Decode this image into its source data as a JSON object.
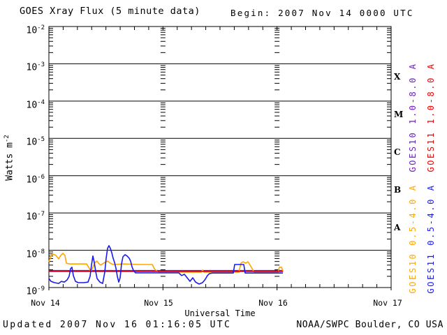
{
  "header": {
    "title": "GOES Xray Flux (5 minute data)",
    "begin": "Begin:  2007 Nov 14 0000 UTC"
  },
  "footer": {
    "updated": "Updated 2007 Nov 16 01:16:05 UTC",
    "source": "NOAA/SWPC Boulder, CO USA"
  },
  "colors": {
    "goes10_long": "#6a1fbf",
    "goes11_long": "#ee0000",
    "goes10_short": "#ffa500",
    "goes11_short": "#1a1aee",
    "axis": "#000000",
    "background": "#ffffff"
  },
  "chart_data": {
    "type": "line",
    "title": "GOES Xray Flux (5 minute data)",
    "xlabel": "Universal Time",
    "ylabel_base": "Watts m",
    "ylabel_exp": "-2",
    "x_unit": "hours since 2007 Nov 14 0000 UTC",
    "xlim_hours": [
      0,
      72
    ],
    "ylog_range": [
      -9,
      -2
    ],
    "grid": "horizontal decade lines, log minor ticks on axes and at day boundaries",
    "minor_tick_interval_hours": 3,
    "x_ticks": [
      {
        "hour": 0,
        "label": "Nov 14"
      },
      {
        "hour": 24,
        "label": "Nov 15"
      },
      {
        "hour": 48,
        "label": "Nov 16"
      },
      {
        "hour": 72,
        "label": "Nov 17"
      }
    ],
    "y_ticks": [
      {
        "base": "10",
        "exp": "-2"
      },
      {
        "base": "10",
        "exp": "-3"
      },
      {
        "base": "10",
        "exp": "-4"
      },
      {
        "base": "10",
        "exp": "-5"
      },
      {
        "base": "10",
        "exp": "-6"
      },
      {
        "base": "10",
        "exp": "-7"
      },
      {
        "base": "10",
        "exp": "-8"
      },
      {
        "base": "10",
        "exp": "-9"
      }
    ],
    "class_bands": [
      "X",
      "M",
      "C",
      "B",
      "A"
    ],
    "legend": [
      {
        "label": "GOES10 1.0-8.0 A",
        "color": "#6a1fbf"
      },
      {
        "label": "GOES11 1.0-8.0 A",
        "color": "#ee0000"
      },
      {
        "label": "GOES10 0.5-4.0 A",
        "color": "#ffa500"
      },
      {
        "label": "GOES11 0.5-4.0 A",
        "color": "#1a1aee"
      }
    ],
    "series": [
      {
        "name": "GOES10 1.0-8.0 A",
        "color": "#6a1fbf",
        "points": [
          [
            0,
            2.85e-09
          ],
          [
            49.25,
            2.85e-09
          ]
        ]
      },
      {
        "name": "GOES10 0.5-4.0 A",
        "color": "#ffa500",
        "points": [
          [
            0,
            4.9e-09
          ],
          [
            0.44,
            7e-09
          ],
          [
            0.88,
            7.9e-09
          ],
          [
            1.47,
            7.3e-09
          ],
          [
            2.06,
            5.85e-09
          ],
          [
            2.5,
            7.3e-09
          ],
          [
            2.94,
            8.3e-09
          ],
          [
            3.38,
            7.3e-09
          ],
          [
            3.67,
            4.5e-09
          ],
          [
            4.41,
            4.3e-09
          ],
          [
            6.61,
            4.3e-09
          ],
          [
            7.94,
            4.3e-09
          ],
          [
            8.37,
            3.5e-09
          ],
          [
            8.82,
            2.7e-09
          ],
          [
            9.26,
            3.5e-09
          ],
          [
            9.7,
            4.7e-09
          ],
          [
            10.14,
            5.1e-09
          ],
          [
            10.43,
            4.5e-09
          ],
          [
            10.87,
            4e-09
          ],
          [
            11.76,
            4.7e-09
          ],
          [
            12.34,
            5.1e-09
          ],
          [
            12.93,
            4.5e-09
          ],
          [
            13.52,
            4.15e-09
          ],
          [
            15.87,
            4.3e-09
          ],
          [
            19.1,
            4.15e-09
          ],
          [
            21.75,
            4.15e-09
          ],
          [
            22.19,
            3.2e-09
          ],
          [
            22.63,
            2.8e-09
          ],
          [
            23.22,
            2.58e-09
          ],
          [
            32.03,
            2.58e-09
          ],
          [
            32.33,
            2.94e-09
          ],
          [
            32.62,
            2.58e-09
          ],
          [
            39.97,
            2.58e-09
          ],
          [
            40.41,
            4.5e-09
          ],
          [
            40.85,
            4.9e-09
          ],
          [
            41.44,
            4.5e-09
          ],
          [
            41.88,
            4.9e-09
          ],
          [
            42.32,
            4e-09
          ],
          [
            42.76,
            3.2e-09
          ],
          [
            43.2,
            2.58e-09
          ],
          [
            48.2,
            2.58e-09
          ],
          [
            48.49,
            3.5e-09
          ],
          [
            48.93,
            3.5e-09
          ],
          [
            49.25,
            2.7e-09
          ]
        ]
      },
      {
        "name": "GOES11 1.0-8.0 A",
        "color": "#ee0000",
        "points": [
          [
            0,
            2.7e-09
          ],
          [
            49.25,
            2.7e-09
          ]
        ]
      },
      {
        "name": "GOES11 0.5-4.0 A",
        "color": "#1a1aee",
        "points": [
          [
            0,
            1.75e-09
          ],
          [
            0.44,
            1.47e-09
          ],
          [
            1.18,
            1.35e-09
          ],
          [
            2.06,
            1.29e-09
          ],
          [
            2.64,
            1.47e-09
          ],
          [
            3.23,
            1.4e-09
          ],
          [
            3.82,
            1.6e-09
          ],
          [
            4.26,
            2e-09
          ],
          [
            4.56,
            3.2e-09
          ],
          [
            4.85,
            3.5e-09
          ],
          [
            5.14,
            2.1e-09
          ],
          [
            5.58,
            1.47e-09
          ],
          [
            6.17,
            1.35e-09
          ],
          [
            7.35,
            1.35e-09
          ],
          [
            8.23,
            1.4e-09
          ],
          [
            8.67,
            2e-09
          ],
          [
            8.96,
            4e-09
          ],
          [
            9.26,
            7e-09
          ],
          [
            9.55,
            4.7e-09
          ],
          [
            9.84,
            2.7e-09
          ],
          [
            10.14,
            1.75e-09
          ],
          [
            10.73,
            1.4e-09
          ],
          [
            11.31,
            1.29e-09
          ],
          [
            11.76,
            2.6e-09
          ],
          [
            12.05,
            6.1e-09
          ],
          [
            12.34,
            1.12e-08
          ],
          [
            12.64,
            1.33e-08
          ],
          [
            12.93,
            1.12e-08
          ],
          [
            13.22,
            8.6e-09
          ],
          [
            13.52,
            6.1e-09
          ],
          [
            13.81,
            4.7e-09
          ],
          [
            14.11,
            3.3e-09
          ],
          [
            14.4,
            2e-09
          ],
          [
            14.69,
            1.4e-09
          ],
          [
            14.99,
            1.83e-09
          ],
          [
            15.28,
            4.3e-09
          ],
          [
            15.57,
            6.65e-09
          ],
          [
            16.02,
            7.6e-09
          ],
          [
            16.46,
            7e-09
          ],
          [
            16.9,
            6.1e-09
          ],
          [
            17.19,
            5.1e-09
          ],
          [
            17.49,
            3.6e-09
          ],
          [
            17.78,
            2.9e-09
          ],
          [
            18.22,
            2.47e-09
          ],
          [
            23.51,
            2.47e-09
          ],
          [
            27.33,
            2.47e-09
          ],
          [
            27.92,
            2.1e-09
          ],
          [
            28.51,
            2.27e-09
          ],
          [
            29.1,
            1.83e-09
          ],
          [
            29.68,
            1.47e-09
          ],
          [
            30.27,
            1.83e-09
          ],
          [
            30.86,
            1.4e-09
          ],
          [
            31.59,
            1.24e-09
          ],
          [
            32.33,
            1.35e-09
          ],
          [
            32.91,
            1.68e-09
          ],
          [
            33.36,
            2.1e-09
          ],
          [
            33.8,
            2.37e-09
          ],
          [
            34.39,
            2.45e-09
          ],
          [
            38.79,
            2.45e-09
          ],
          [
            39.09,
            4.14e-09
          ],
          [
            41.0,
            4.14e-09
          ],
          [
            41.29,
            2.45e-09
          ],
          [
            49.22,
            2.45e-09
          ]
        ]
      }
    ]
  }
}
